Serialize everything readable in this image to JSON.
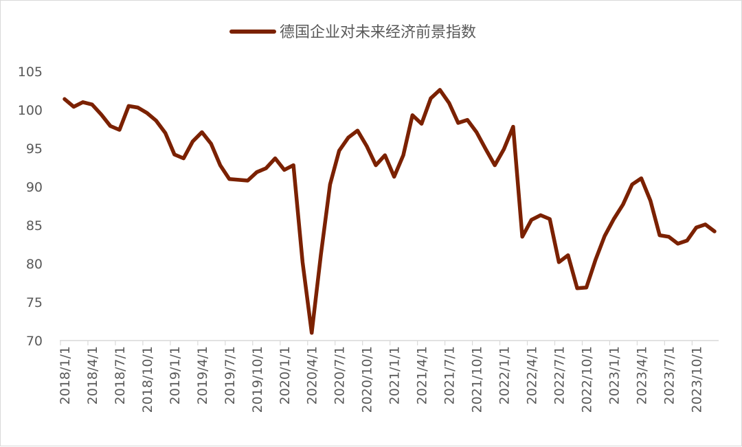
{
  "chart_data": {
    "type": "line",
    "title": "",
    "xlabel": "",
    "ylabel": "",
    "ylim": [
      70,
      105
    ],
    "yticks": [
      70,
      75,
      80,
      85,
      90,
      95,
      100,
      105
    ],
    "grid": false,
    "legend_position": "top",
    "x_tick_labels": [
      "2018/1/1",
      "2018/4/1",
      "2018/7/1",
      "2018/10/1",
      "2019/1/1",
      "2019/4/1",
      "2019/7/1",
      "2019/10/1",
      "2020/1/1",
      "2020/4/1",
      "2020/7/1",
      "2020/10/1",
      "2021/1/1",
      "2021/4/1",
      "2021/7/1",
      "2021/10/1",
      "2022/1/1",
      "2022/4/1",
      "2022/7/1",
      "2022/10/1",
      "2023/1/1",
      "2023/4/1",
      "2023/7/1",
      "2023/10/1"
    ],
    "series": [
      {
        "name": "德国企业对未来经济前景指数",
        "color": "#7b2100",
        "values": [
          101.4,
          100.4,
          101.0,
          100.7,
          99.4,
          97.9,
          97.4,
          100.5,
          100.3,
          99.6,
          98.6,
          97.0,
          94.2,
          93.7,
          95.9,
          97.1,
          95.6,
          92.8,
          91.0,
          90.9,
          90.8,
          91.9,
          92.4,
          93.7,
          92.2,
          92.8,
          80.2,
          71.0,
          81.2,
          90.3,
          94.7,
          96.4,
          97.3,
          95.3,
          92.8,
          94.1,
          91.3,
          94.1,
          99.3,
          98.2,
          101.5,
          102.6,
          100.9,
          98.3,
          98.7,
          97.1,
          94.9,
          92.8,
          94.9,
          97.8,
          83.5,
          85.7,
          86.3,
          85.8,
          80.2,
          81.1,
          76.8,
          76.9,
          80.5,
          83.6,
          85.8,
          87.7,
          90.3,
          91.1,
          88.2,
          83.7,
          83.5,
          82.6,
          83.0,
          84.7,
          85.1,
          84.2
        ]
      }
    ]
  }
}
